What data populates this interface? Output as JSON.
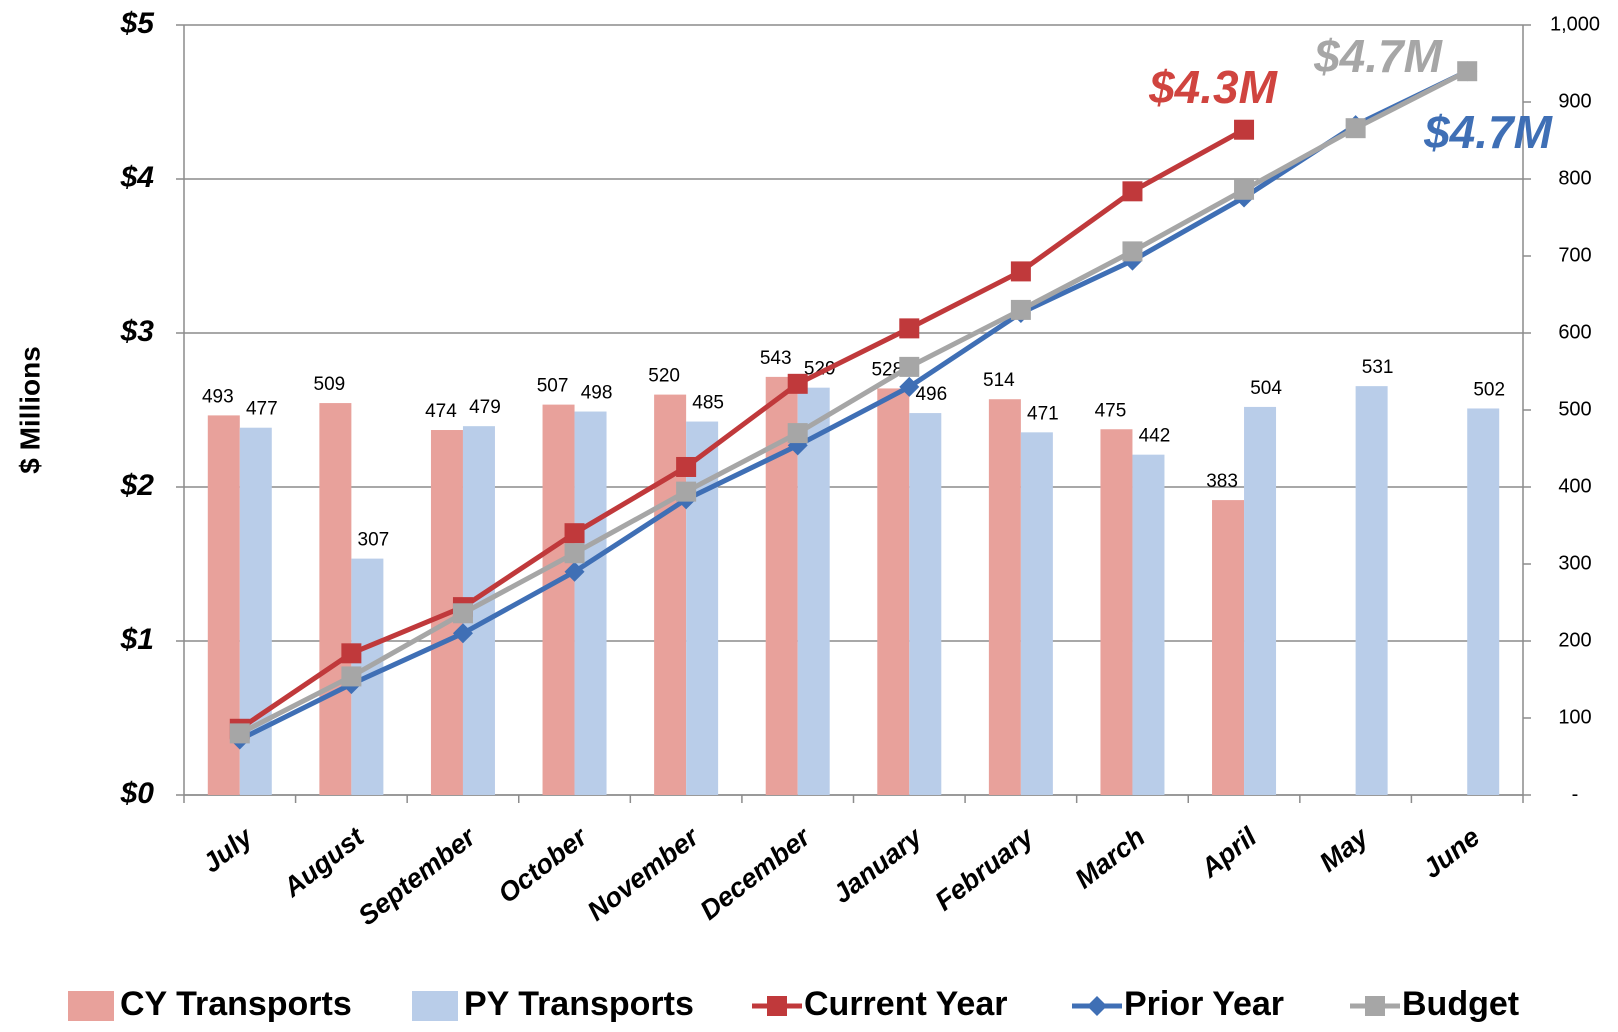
{
  "chart_data": {
    "type": "bar-line",
    "categories": [
      "July",
      "August",
      "September",
      "October",
      "November",
      "December",
      "January",
      "February",
      "March",
      "April",
      "May",
      "June"
    ],
    "series": [
      {
        "name": "CY Transports",
        "type": "bar",
        "axis": "y2",
        "color": "#e8a19b",
        "values": [
          493,
          509,
          474,
          507,
          520,
          543,
          528,
          514,
          475,
          383,
          null,
          null
        ]
      },
      {
        "name": "PY Transports",
        "type": "bar",
        "axis": "y2",
        "color": "#b9cde9",
        "values": [
          477,
          307,
          479,
          498,
          485,
          529,
          496,
          471,
          442,
          504,
          531,
          502
        ]
      },
      {
        "name": "Current Year",
        "type": "line",
        "marker": "square",
        "color": "#c0393b",
        "values": [
          0.43,
          0.92,
          1.22,
          1.7,
          2.13,
          2.67,
          3.03,
          3.4,
          3.92,
          4.32,
          null,
          null
        ]
      },
      {
        "name": "Prior Year",
        "type": "line",
        "marker": "diamond",
        "color": "#3f6fb5",
        "values": [
          0.36,
          0.72,
          1.05,
          1.45,
          1.92,
          2.27,
          2.65,
          3.13,
          3.47,
          3.88,
          4.35,
          4.7
        ]
      },
      {
        "name": "Budget",
        "type": "line",
        "marker": "square",
        "color": "#a6a6a6",
        "values": [
          0.4,
          0.77,
          1.18,
          1.57,
          1.97,
          2.35,
          2.78,
          3.15,
          3.53,
          3.93,
          4.33,
          4.7
        ]
      }
    ],
    "y_label": "$ Millions",
    "ylim": [
      0,
      5
    ],
    "yticks": [
      {
        "value": 0,
        "label": "$0"
      },
      {
        "value": 1,
        "label": "$1"
      },
      {
        "value": 2,
        "label": "$2"
      },
      {
        "value": 3,
        "label": "$3"
      },
      {
        "value": 4,
        "label": "$4"
      },
      {
        "value": 5,
        "label": "$5"
      }
    ],
    "y2lim": [
      0,
      1000
    ],
    "y2ticks": [
      {
        "value": 0,
        "label": "-"
      },
      100,
      200,
      300,
      400,
      500,
      600,
      700,
      800,
      900,
      {
        "value": 1000,
        "label": "1,000"
      }
    ],
    "grid": true,
    "legend": "bottom",
    "annotations": [
      {
        "text": "$4.3M",
        "color": "#d0443f"
      },
      {
        "text": "$4.7M",
        "color": "#a6a6a6"
      },
      {
        "text": "$4.7M",
        "color": "#3f6fb5"
      }
    ]
  }
}
